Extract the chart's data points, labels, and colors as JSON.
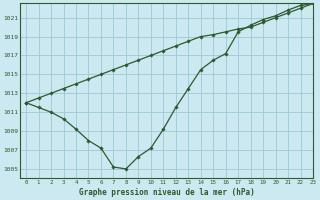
{
  "title": "Graphe pression niveau de la mer (hPa)",
  "bg_color": "#cce8f0",
  "grid_color": "#9cc8d5",
  "line_color": "#2d5a2d",
  "marker_color": "#2d5a2d",
  "xlim": [
    -0.5,
    23
  ],
  "ylim": [
    1004.0,
    1022.5
  ],
  "yticks": [
    1005,
    1007,
    1009,
    1011,
    1013,
    1015,
    1017,
    1019,
    1021
  ],
  "xticks": [
    0,
    1,
    2,
    3,
    4,
    5,
    6,
    7,
    8,
    9,
    10,
    11,
    12,
    13,
    14,
    15,
    16,
    17,
    18,
    19,
    20,
    21,
    22,
    23
  ],
  "series_straight": {
    "x": [
      0,
      1,
      2,
      3,
      4,
      5,
      6,
      7,
      8,
      9,
      10,
      11,
      12,
      13,
      14,
      15,
      16,
      17,
      18,
      19,
      20,
      21,
      22,
      23
    ],
    "y": [
      1012.0,
      1012.5,
      1013.0,
      1013.5,
      1014.0,
      1014.5,
      1015.0,
      1015.5,
      1016.0,
      1016.5,
      1017.0,
      1017.5,
      1018.0,
      1018.5,
      1019.0,
      1019.2,
      1019.5,
      1019.8,
      1020.0,
      1020.5,
      1021.0,
      1021.5,
      1022.0,
      1022.5
    ]
  },
  "series_curve": {
    "x": [
      0,
      1,
      2,
      3,
      4,
      5,
      6,
      7,
      8,
      9,
      10,
      11,
      12,
      13,
      14,
      15,
      16,
      17,
      18,
      19,
      20,
      21,
      22,
      23
    ],
    "y": [
      1012.0,
      1011.5,
      1011.0,
      1010.3,
      1009.2,
      1008.0,
      1007.2,
      1005.2,
      1005.0,
      1006.3,
      1007.2,
      1009.2,
      1011.5,
      1013.5,
      1015.5,
      1016.5,
      1017.2,
      1019.5,
      1020.2,
      1020.8,
      1021.2,
      1021.8,
      1022.3,
      1022.5
    ]
  }
}
